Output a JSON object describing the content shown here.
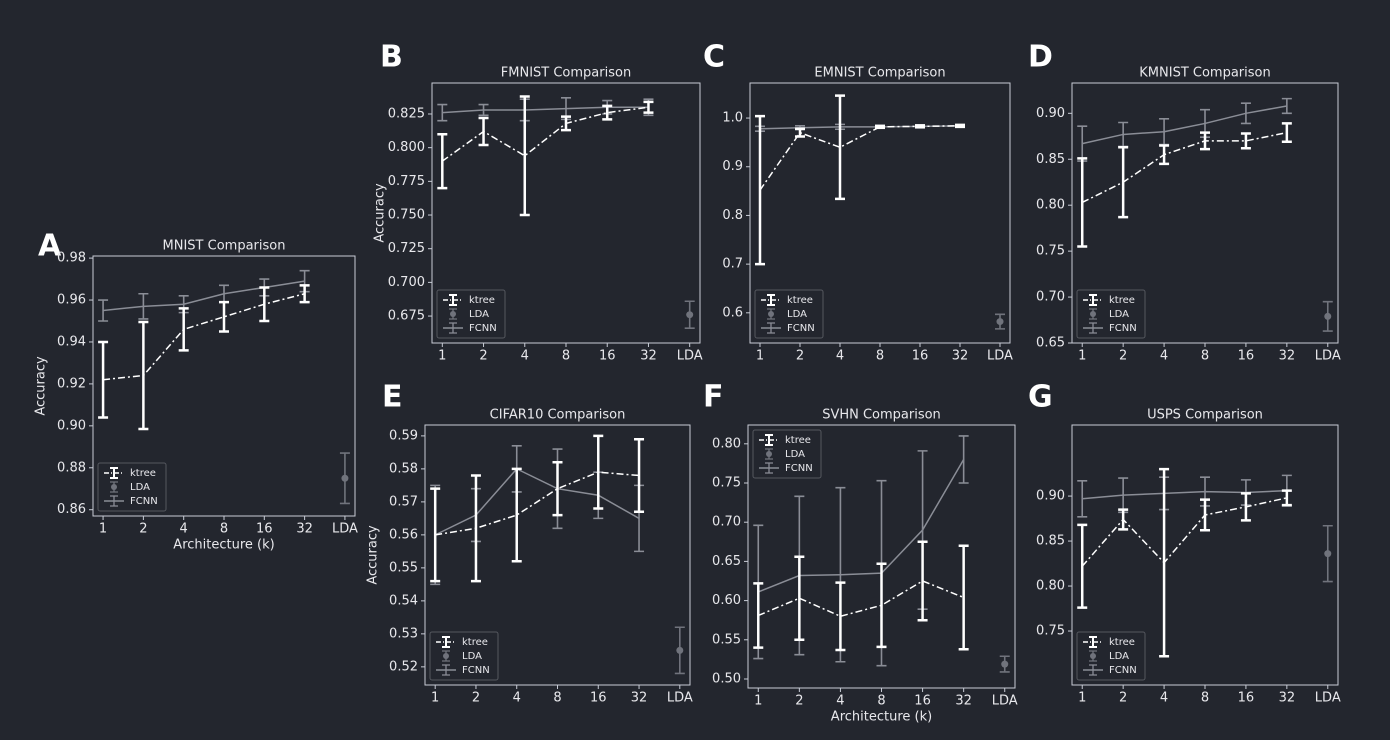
{
  "chart_data": [
    {
      "type": "line",
      "panel": "A",
      "title": "MNIST Comparison",
      "xlabel": "Architecture (k)",
      "ylabel": "Accuracy",
      "categories": [
        "1",
        "2",
        "4",
        "8",
        "16",
        "32",
        "LDA"
      ],
      "ylim": [
        0.857,
        0.981
      ],
      "yticks": [
        0.86,
        0.88,
        {
          "value": 0.9,
          "label": "0.90"
        },
        0.92,
        0.94,
        0.96,
        0.98
      ],
      "legend": "lower left",
      "series": [
        {
          "name": "ktree",
          "color": "#ffffff",
          "values": [
            0.922,
            0.924,
            0.946,
            0.952,
            0.958,
            0.963,
            null
          ],
          "errors": [
            0.018,
            0.0255,
            0.01,
            0.007,
            0.008,
            0.004,
            null
          ]
        },
        {
          "name": "LDA",
          "color": "#70737c",
          "values": [
            null,
            null,
            null,
            null,
            null,
            null,
            0.875
          ],
          "errors": [
            null,
            null,
            null,
            null,
            null,
            null,
            0.012
          ]
        },
        {
          "name": "FCNN",
          "color": "#8a8d96",
          "values": [
            0.955,
            0.957,
            0.958,
            0.963,
            0.966,
            0.969,
            null
          ],
          "errors": [
            0.005,
            0.006,
            0.004,
            0.004,
            0.004,
            0.005,
            null
          ]
        }
      ]
    },
    {
      "type": "line",
      "panel": "B",
      "title": "FMNIST Comparison",
      "ylabel": "Accuracy",
      "categories": [
        "1",
        "2",
        "4",
        "8",
        "16",
        "32",
        "LDA"
      ],
      "ylim": [
        0.655,
        0.848
      ],
      "yticks": [
        0.675,
        {
          "value": 0.7,
          "label": "0.700"
        },
        0.725,
        {
          "value": 0.75,
          "label": "0.750"
        },
        0.775,
        {
          "value": 0.8,
          "label": "0.800"
        },
        0.825
      ],
      "legend": "lower left",
      "series": [
        {
          "name": "ktree",
          "color": "#ffffff",
          "values": [
            0.79,
            0.812,
            0.794,
            0.818,
            0.826,
            0.83,
            null
          ],
          "errors": [
            0.02,
            0.01,
            0.044,
            0.005,
            0.005,
            0.004,
            null
          ]
        },
        {
          "name": "LDA",
          "color": "#70737c",
          "values": [
            null,
            null,
            null,
            null,
            null,
            null,
            0.676
          ],
          "errors": [
            null,
            null,
            null,
            null,
            null,
            null,
            0.01
          ]
        },
        {
          "name": "FCNN",
          "color": "#8a8d96",
          "values": [
            0.826,
            0.828,
            0.828,
            0.829,
            0.83,
            0.83,
            null
          ],
          "errors": [
            0.006,
            0.004,
            0.008,
            0.008,
            0.005,
            0.006,
            null
          ]
        }
      ]
    },
    {
      "type": "line",
      "panel": "C",
      "title": "EMNIST Comparison",
      "categories": [
        "1",
        "2",
        "4",
        "8",
        "16",
        "32",
        "LDA"
      ],
      "ylim": [
        0.538,
        1.072
      ],
      "yticks": [
        0.6,
        0.7,
        0.8,
        0.9,
        {
          "value": 1,
          "label": "1.0"
        }
      ],
      "legend": "lower left",
      "series": [
        {
          "name": "ktree",
          "color": "#ffffff",
          "values": [
            0.852,
            0.97,
            0.94,
            0.982,
            0.983,
            0.984,
            null
          ],
          "errors": [
            0.152,
            0.008,
            0.106,
            0.002,
            0.002,
            0.002,
            null
          ]
        },
        {
          "name": "LDA",
          "color": "#70737c",
          "values": [
            null,
            null,
            null,
            null,
            null,
            null,
            0.582
          ],
          "errors": [
            null,
            null,
            null,
            null,
            null,
            null,
            0.015
          ]
        },
        {
          "name": "FCNN",
          "color": "#8a8d96",
          "values": [
            0.978,
            0.98,
            0.982,
            0.982,
            0.983,
            0.984,
            null
          ],
          "errors": [
            0.005,
            0.004,
            0.005,
            0.003,
            0.003,
            0.002,
            null
          ]
        }
      ]
    },
    {
      "type": "line",
      "panel": "D",
      "title": "KMNIST Comparison",
      "categories": [
        "1",
        "2",
        "4",
        "8",
        "16",
        "32",
        "LDA"
      ],
      "ylim": [
        0.65,
        0.933
      ],
      "yticks": [
        0.65,
        {
          "value": 0.7,
          "label": "0.70"
        },
        0.75,
        {
          "value": 0.8,
          "label": "0.80"
        },
        0.85,
        {
          "value": 0.9,
          "label": "0.90"
        }
      ],
      "legend": "lower left",
      "series": [
        {
          "name": "ktree",
          "color": "#ffffff",
          "values": [
            0.803,
            0.825,
            0.855,
            0.87,
            0.87,
            0.879,
            null
          ],
          "errors": [
            0.048,
            0.038,
            0.01,
            0.009,
            0.008,
            0.01,
            null
          ]
        },
        {
          "name": "LDA",
          "color": "#70737c",
          "values": [
            null,
            null,
            null,
            null,
            null,
            null,
            0.679
          ],
          "errors": [
            null,
            null,
            null,
            null,
            null,
            null,
            0.016
          ]
        },
        {
          "name": "FCNN",
          "color": "#8a8d96",
          "values": [
            0.867,
            0.877,
            0.88,
            0.889,
            0.9,
            0.908,
            null
          ],
          "errors": [
            0.019,
            0.013,
            0.014,
            0.015,
            0.011,
            0.008,
            null
          ]
        }
      ]
    },
    {
      "type": "line",
      "panel": "E",
      "title": "CIFAR10 Comparison",
      "ylabel": "Accuracy",
      "categories": [
        "1",
        "2",
        "4",
        "8",
        "16",
        "32",
        "LDA"
      ],
      "ylim": [
        0.5145,
        0.5933
      ],
      "yticks": [
        0.52,
        0.53,
        0.54,
        0.55,
        0.56,
        0.57,
        0.58,
        0.59
      ],
      "legend": "lower left",
      "series": [
        {
          "name": "ktree",
          "color": "#ffffff",
          "values": [
            0.56,
            0.562,
            0.566,
            0.574,
            0.579,
            0.578,
            null
          ],
          "errors": [
            0.014,
            0.016,
            0.014,
            0.008,
            0.011,
            0.011,
            null
          ]
        },
        {
          "name": "LDA",
          "color": "#70737c",
          "values": [
            null,
            null,
            null,
            null,
            null,
            null,
            0.525
          ],
          "errors": [
            null,
            null,
            null,
            null,
            null,
            null,
            0.007
          ]
        },
        {
          "name": "FCNN",
          "color": "#8a8d96",
          "values": [
            0.56,
            0.566,
            0.58,
            0.574,
            0.572,
            0.565,
            null
          ],
          "errors": [
            0.015,
            0.008,
            0.007,
            0.012,
            0.007,
            0.01,
            null
          ]
        }
      ]
    },
    {
      "type": "line",
      "panel": "F",
      "title": "SVHN Comparison",
      "xlabel": "Architecture (k)",
      "categories": [
        "1",
        "2",
        "4",
        "8",
        "16",
        "32",
        "LDA"
      ],
      "ylim": [
        0.4885,
        0.824
      ],
      "yticks": [
        {
          "value": 0.5,
          "label": "0.50"
        },
        0.55,
        {
          "value": 0.6,
          "label": "0.60"
        },
        0.65,
        {
          "value": 0.7,
          "label": "0.70"
        },
        0.75,
        {
          "value": 0.8,
          "label": "0.80"
        }
      ],
      "legend": "upper left",
      "series": [
        {
          "name": "ktree",
          "color": "#ffffff",
          "values": [
            0.581,
            0.603,
            0.58,
            0.594,
            0.625,
            0.604,
            null
          ],
          "errors": [
            0.041,
            0.053,
            0.043,
            0.053,
            0.05,
            0.066,
            null
          ]
        },
        {
          "name": "LDA",
          "color": "#70737c",
          "values": [
            null,
            null,
            null,
            null,
            null,
            null,
            0.519
          ],
          "errors": [
            null,
            null,
            null,
            null,
            null,
            null,
            0.01
          ]
        },
        {
          "name": "FCNN",
          "color": "#8a8d96",
          "values": [
            0.611,
            0.632,
            0.633,
            0.635,
            0.69,
            0.78,
            null
          ],
          "errors": [
            0.085,
            0.101,
            0.111,
            0.118,
            0.101,
            0.03,
            null
          ]
        }
      ]
    },
    {
      "type": "line",
      "panel": "G",
      "title": "USPS Comparison",
      "categories": [
        "1",
        "2",
        "4",
        "8",
        "16",
        "32",
        "LDA"
      ],
      "ylim": [
        0.69,
        0.979
      ],
      "yticks": [
        0.75,
        {
          "value": 0.8,
          "label": "0.80"
        },
        0.85,
        {
          "value": 0.9,
          "label": "0.90"
        }
      ],
      "legend": "lower left",
      "series": [
        {
          "name": "ktree",
          "color": "#ffffff",
          "values": [
            0.822,
            0.874,
            0.826,
            0.879,
            0.888,
            0.898,
            null
          ],
          "errors": [
            0.046,
            0.011,
            0.104,
            0.017,
            0.015,
            0.008,
            null
          ]
        },
        {
          "name": "LDA",
          "color": "#70737c",
          "values": [
            null,
            null,
            null,
            null,
            null,
            null,
            0.836
          ],
          "errors": [
            null,
            null,
            null,
            null,
            null,
            null,
            0.031
          ]
        },
        {
          "name": "FCNN",
          "color": "#8a8d96",
          "values": [
            0.897,
            0.901,
            0.903,
            0.905,
            0.904,
            0.906,
            null
          ],
          "errors": [
            0.02,
            0.019,
            0.018,
            0.016,
            0.014,
            0.017,
            null
          ]
        }
      ]
    }
  ]
}
